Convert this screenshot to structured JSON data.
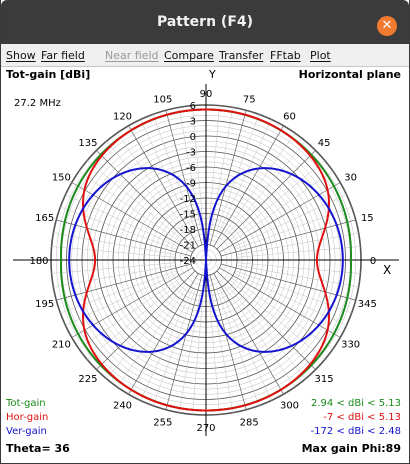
{
  "window": {
    "title": "Pattern  (F4)",
    "close_glyph": "✕"
  },
  "menu": [
    {
      "label": "Show",
      "enabled": true
    },
    {
      "label": "Far field",
      "enabled": true
    },
    {
      "label": "Near field",
      "enabled": false
    },
    {
      "label": "Compare",
      "enabled": true
    },
    {
      "label": "Transfer",
      "enabled": true
    },
    {
      "label": "FFtab",
      "enabled": true
    },
    {
      "label": "Plot",
      "enabled": true
    }
  ],
  "plot_info": {
    "gain_type": "Tot-gain [dBi]",
    "plane": "Horizontal plane",
    "frequency": "27.2 MHz",
    "theta": "Theta= 36",
    "max_gain": "Max gain Phi:89",
    "axis_y_label": "Y",
    "axis_x_label": "X"
  },
  "legend": [
    {
      "name": "Tot-gain",
      "range": "2.94 < dBi < 5.13",
      "color": "#1a8a1a"
    },
    {
      "name": "Hor-gain",
      "range": "-7 < dBi < 5.13",
      "color": "#e01010"
    },
    {
      "name": "Ver-gain",
      "range": "-172 < dBi < 2.48",
      "color": "#1414d0"
    }
  ],
  "chart_data": {
    "type": "polar",
    "angle_unit": "degrees",
    "angle_labels": [
      "0",
      "15",
      "30",
      "45",
      "60",
      "75",
      "90",
      "105",
      "120",
      "135",
      "150",
      "165",
      "180",
      "195",
      "210",
      "225",
      "240",
      "255",
      "270",
      "285",
      "300",
      "315",
      "330",
      "345"
    ],
    "radial_labels": [
      "6",
      "3",
      "0",
      "-3",
      "-6",
      "-9",
      "-12",
      "-15",
      "-18",
      "-21",
      "-24"
    ],
    "radial_range": [
      -24,
      6
    ],
    "series": [
      {
        "name": "Tot-gain",
        "color": "#1a8a1a",
        "min": 2.94,
        "max": 5.13
      },
      {
        "name": "Hor-gain",
        "color": "#e01010",
        "min": -7,
        "max": 5.13
      },
      {
        "name": "Ver-gain",
        "color": "#1414d0",
        "min": -172,
        "max": 2.48
      }
    ]
  }
}
